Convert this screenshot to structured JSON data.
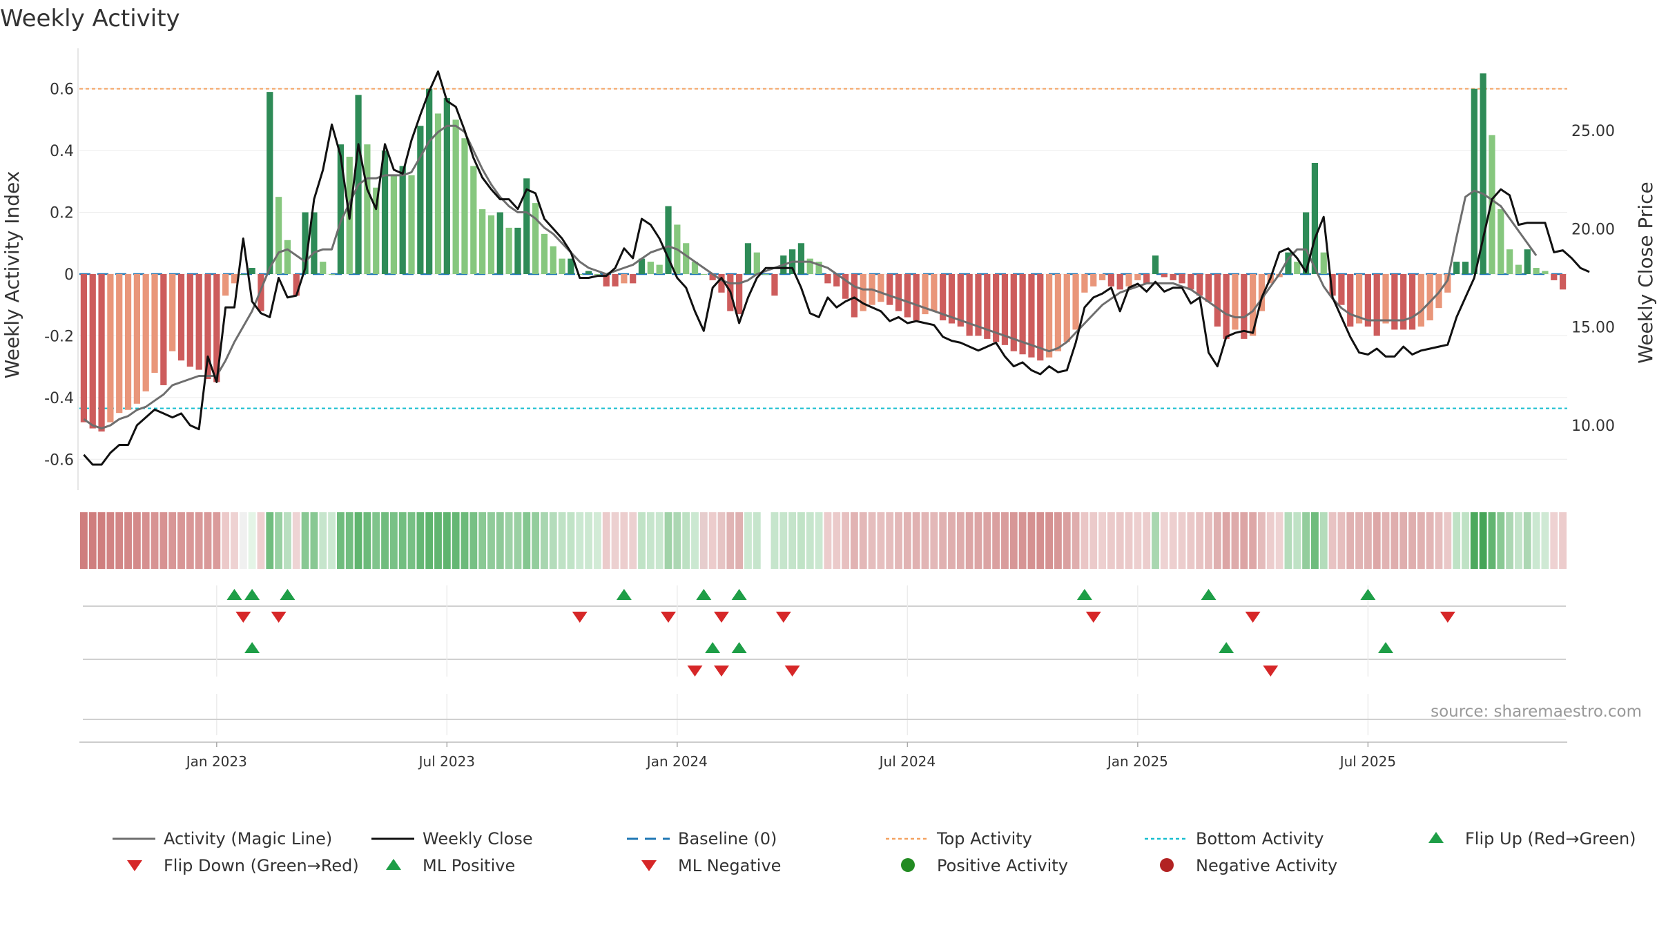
{
  "chart_data": {
    "type": "bar",
    "title": "Weekly Activity",
    "ylabel": "Weekly Activity Index",
    "y2label": "Weekly Close Price",
    "ylim": [
      -0.7,
      0.72
    ],
    "y2lim": [
      6.7,
      29.0
    ],
    "yticks": [
      -0.6,
      -0.4,
      -0.2,
      0,
      0.2,
      0.4,
      0.6
    ],
    "ytick_labels": [
      "-0.6",
      "-0.4",
      "-0.2",
      "0",
      "0.2",
      "0.4",
      "0.6"
    ],
    "y2ticks": [
      10,
      15,
      20,
      25
    ],
    "y2tick_labels": [
      "10.00",
      "15.00",
      "20.00",
      "25.00"
    ],
    "xticks": [
      15,
      41,
      67,
      93,
      119,
      145
    ],
    "xtick_labels": [
      "Jan 2023",
      "Jul 2023",
      "Jan 2024",
      "Jul 2024",
      "Jan 2025",
      "Jul 2025"
    ],
    "top_activity": 0.6,
    "bottom_activity": -0.435,
    "baseline": 0,
    "activity": [
      -0.48,
      -0.5,
      -0.51,
      -0.48,
      -0.45,
      -0.44,
      -0.42,
      -0.38,
      -0.32,
      -0.36,
      -0.25,
      -0.28,
      -0.3,
      -0.31,
      -0.34,
      -0.35,
      -0.07,
      -0.03,
      0.0,
      0.02,
      -0.12,
      0.59,
      0.25,
      0.11,
      -0.07,
      0.2,
      0.2,
      0.04,
      0.0,
      0.42,
      0.38,
      0.58,
      0.42,
      0.28,
      0.4,
      0.32,
      0.35,
      0.32,
      0.48,
      0.6,
      0.52,
      0.57,
      0.5,
      0.44,
      0.35,
      0.21,
      0.19,
      0.2,
      0.15,
      0.15,
      0.31,
      0.23,
      0.13,
      0.09,
      0.05,
      0.05,
      0.0,
      0.01,
      0.0,
      -0.04,
      -0.04,
      -0.03,
      -0.03,
      0.05,
      0.04,
      0.03,
      0.22,
      0.16,
      0.1,
      0.04,
      0.0,
      -0.02,
      -0.06,
      -0.12,
      -0.13,
      0.1,
      0.07,
      0.0,
      -0.07,
      0.06,
      0.08,
      0.1,
      0.05,
      0.04,
      -0.03,
      -0.04,
      -0.08,
      -0.14,
      -0.12,
      -0.1,
      -0.09,
      -0.1,
      -0.12,
      -0.14,
      -0.15,
      -0.13,
      -0.12,
      -0.15,
      -0.16,
      -0.17,
      -0.2,
      -0.2,
      -0.21,
      -0.22,
      -0.23,
      -0.25,
      -0.26,
      -0.27,
      -0.28,
      -0.27,
      -0.25,
      -0.22,
      -0.18,
      -0.06,
      -0.04,
      -0.02,
      -0.04,
      -0.05,
      -0.04,
      -0.02,
      -0.03,
      0.06,
      -0.01,
      -0.02,
      -0.03,
      -0.05,
      -0.07,
      -0.09,
      -0.17,
      -0.21,
      -0.18,
      -0.21,
      -0.2,
      -0.12,
      -0.03,
      -0.01,
      0.07,
      0.04,
      0.2,
      0.36,
      0.07,
      -0.07,
      -0.1,
      -0.17,
      -0.16,
      -0.17,
      -0.2,
      -0.16,
      -0.18,
      -0.18,
      -0.18,
      -0.17,
      -0.15,
      -0.11,
      -0.06,
      0.04,
      0.04,
      0.6,
      0.65,
      0.45,
      0.21,
      0.08,
      0.03,
      0.08,
      0.02,
      0.01,
      -0.02,
      -0.05
    ],
    "magic_line": [
      -0.47,
      -0.49,
      -0.5,
      -0.49,
      -0.47,
      -0.46,
      -0.44,
      -0.43,
      -0.41,
      -0.39,
      -0.36,
      -0.35,
      -0.34,
      -0.33,
      -0.33,
      -0.33,
      -0.28,
      -0.22,
      -0.17,
      -0.12,
      -0.05,
      0.02,
      0.07,
      0.08,
      0.06,
      0.04,
      0.07,
      0.08,
      0.08,
      0.17,
      0.23,
      0.29,
      0.31,
      0.31,
      0.32,
      0.32,
      0.32,
      0.33,
      0.38,
      0.43,
      0.46,
      0.48,
      0.48,
      0.46,
      0.4,
      0.34,
      0.29,
      0.25,
      0.22,
      0.2,
      0.2,
      0.18,
      0.15,
      0.13,
      0.1,
      0.07,
      0.04,
      0.02,
      0.01,
      0.0,
      0.01,
      0.02,
      0.03,
      0.05,
      0.07,
      0.08,
      0.09,
      0.08,
      0.06,
      0.04,
      0.02,
      0.0,
      -0.02,
      -0.03,
      -0.03,
      -0.02,
      0.0,
      0.01,
      0.02,
      0.03,
      0.04,
      0.04,
      0.04,
      0.03,
      0.02,
      0.0,
      -0.02,
      -0.04,
      -0.05,
      -0.05,
      -0.06,
      -0.07,
      -0.08,
      -0.09,
      -0.1,
      -0.11,
      -0.12,
      -0.13,
      -0.14,
      -0.15,
      -0.16,
      -0.17,
      -0.18,
      -0.19,
      -0.2,
      -0.21,
      -0.22,
      -0.23,
      -0.24,
      -0.25,
      -0.24,
      -0.22,
      -0.19,
      -0.16,
      -0.13,
      -0.1,
      -0.08,
      -0.06,
      -0.05,
      -0.04,
      -0.03,
      -0.03,
      -0.03,
      -0.03,
      -0.04,
      -0.05,
      -0.07,
      -0.09,
      -0.11,
      -0.13,
      -0.14,
      -0.14,
      -0.12,
      -0.08,
      -0.04,
      0.0,
      0.05,
      0.08,
      0.08,
      0.02,
      -0.04,
      -0.08,
      -0.11,
      -0.13,
      -0.14,
      -0.15,
      -0.15,
      -0.15,
      -0.15,
      -0.15,
      -0.14,
      -0.12,
      -0.09,
      -0.06,
      -0.02,
      0.12,
      0.25,
      0.27,
      0.26,
      0.24,
      0.22,
      0.18,
      0.14,
      0.1,
      0.06
    ],
    "weekly_close": [
      8.5,
      8.0,
      8.0,
      8.6,
      9.0,
      9.0,
      10.0,
      10.4,
      10.8,
      10.6,
      10.4,
      10.6,
      10.0,
      9.8,
      13.5,
      12.2,
      16.0,
      16.0,
      19.5,
      16.3,
      15.7,
      15.5,
      17.5,
      16.5,
      16.6,
      18.0,
      21.5,
      23.0,
      25.3,
      23.7,
      20.5,
      24.3,
      22.0,
      21.0,
      24.3,
      23.0,
      22.8,
      24.5,
      25.8,
      27.0,
      28.0,
      26.5,
      26.2,
      25.0,
      23.6,
      22.6,
      22.0,
      21.5,
      21.5,
      21.0,
      22.0,
      21.8,
      20.5,
      20.0,
      19.5,
      18.8,
      17.5,
      17.5,
      17.6,
      17.6,
      18.0,
      19.0,
      18.5,
      20.5,
      20.2,
      19.5,
      18.5,
      17.5,
      17.0,
      15.8,
      14.8,
      17.0,
      17.5,
      16.8,
      15.2,
      16.5,
      17.5,
      18.0,
      18.0,
      18.0,
      18.0,
      17.0,
      15.7,
      15.5,
      16.5,
      16.0,
      16.3,
      16.5,
      16.2,
      16.0,
      15.8,
      15.3,
      15.5,
      15.2,
      15.3,
      15.2,
      15.1,
      14.5,
      14.3,
      14.2,
      14.0,
      13.8,
      14.0,
      14.2,
      13.5,
      13.0,
      13.2,
      12.8,
      12.6,
      13.0,
      12.7,
      12.8,
      14.2,
      16.0,
      16.5,
      16.7,
      17.0,
      15.8,
      17.0,
      17.2,
      16.8,
      17.3,
      16.8,
      17.0,
      17.0,
      16.2,
      16.5,
      13.7,
      13.0,
      14.5,
      14.7,
      14.8,
      14.7,
      16.5,
      17.5,
      18.8,
      19.0,
      18.5,
      17.8,
      19.5,
      20.6,
      16.5,
      15.5,
      14.5,
      13.7,
      13.6,
      13.9,
      13.5,
      13.5,
      14.0,
      13.6,
      13.8,
      13.9,
      14.0,
      14.1,
      15.5,
      16.5,
      17.5,
      19.5,
      21.5,
      22.0,
      21.7,
      20.2,
      20.3,
      20.3,
      20.3,
      18.8,
      18.9,
      18.5,
      18.0,
      17.8
    ],
    "heat_colors": [
      "#cf7e7e",
      "#cf7e7e",
      "#cf7e7e",
      "#d18383",
      "#d28686",
      "#d38888",
      "#d48a8a",
      "#d69090",
      "#d79393",
      "#d79292",
      "#d89696",
      "#d89696",
      "#d99797",
      "#d99999",
      "#d99999",
      "#da9b9b",
      "#ecc9c9",
      "#eed2d2",
      "#f0f0f0",
      "#e4f4e6",
      "#eed0d0",
      "#70bd7e",
      "#98d0a2",
      "#b9dfc0",
      "#eed4d4",
      "#88c893",
      "#88c893",
      "#c6e5cc",
      "#cbe8d1",
      "#6fbc7d",
      "#72bd80",
      "#5fb46e",
      "#6cba7a",
      "#80c48c",
      "#70bc7e",
      "#79c186",
      "#72be80",
      "#77c084",
      "#65b774",
      "#5eb46d",
      "#62b571",
      "#5fb46e",
      "#65b774",
      "#6cba7a",
      "#77c084",
      "#8ac994",
      "#90cb9a",
      "#8ec998",
      "#9dd1a6",
      "#9ad0a3",
      "#84c690",
      "#93cd9d",
      "#a8d6b0",
      "#b4dcbb",
      "#bfe2c5",
      "#c0e3c6",
      "#cbe8d1",
      "#cce8d1",
      "#d2ebd6",
      "#ebcbcb",
      "#ecd0d0",
      "#eccece",
      "#ecd0d0",
      "#c0e3c6",
      "#c6e5cc",
      "#c9e7cf",
      "#a0d2a8",
      "#acd7b3",
      "#bde1c3",
      "#cbe8d1",
      "#e6cdcd",
      "#eccccc",
      "#e6c4c4",
      "#e0b4b4",
      "#dfb0b0",
      "#cbe8d1",
      "#c6e5cc",
      "#ffffff",
      "#c6e5cc",
      "#c6e5cc",
      "#c4e4ca",
      "#c0e3c6",
      "#c6e5cc",
      "#cbe8d1",
      "#eccccc",
      "#ebcaca",
      "#e7c0c0",
      "#e1b3b3",
      "#e3b8b8",
      "#e5bdbd",
      "#e6bfbf",
      "#e5bdbd",
      "#e3b8b8",
      "#e1b3b3",
      "#e0b1b1",
      "#e2b5b5",
      "#e3b8b8",
      "#e0b1b1",
      "#dfaeae",
      "#deacac",
      "#dca5a5",
      "#dca5a5",
      "#dba3a3",
      "#daa0a0",
      "#d99d9d",
      "#d79797",
      "#d69494",
      "#d59191",
      "#d48f8f",
      "#d59191",
      "#d79797",
      "#daa0a0",
      "#dfadad",
      "#eac6c6",
      "#ebcaca",
      "#edcfcf",
      "#ebcaca",
      "#eac8c8",
      "#ebcaca",
      "#edcfcf",
      "#eccdcd",
      "#a9d7b0",
      "#eed3d3",
      "#edcfcf",
      "#eccdcd",
      "#eac8c8",
      "#e8c3c3",
      "#e6bebe",
      "#dfb0b0",
      "#dca5a5",
      "#deabab",
      "#dca5a5",
      "#dda7a7",
      "#e4bbbb",
      "#eccdcd",
      "#eed2d2",
      "#b4dcbb",
      "#bfe2c5",
      "#93cd9d",
      "#6fbc7d",
      "#b4dcbb",
      "#e8c3c3",
      "#e6bebe",
      "#e0b1b1",
      "#e1b3b3",
      "#e0b1b1",
      "#dda7a7",
      "#e1b3b3",
      "#dfaeae",
      "#dfaeae",
      "#dfaeae",
      "#e0b1b1",
      "#e2b5b5",
      "#e6bebe",
      "#eac8c8",
      "#bfe2c5",
      "#bfe2c5",
      "#4ca95d",
      "#46a558",
      "#62b571",
      "#8ac994",
      "#acd7b3",
      "#c4e4ca",
      "#acd7b3",
      "#cbe8d1",
      "#cfe9d4",
      "#eed2d2",
      "#eccccc"
    ],
    "flip_up": [
      17,
      19,
      23,
      61,
      70,
      74,
      113,
      127,
      145
    ],
    "flip_down": [
      18,
      22,
      56,
      66,
      72,
      79,
      114,
      132,
      154
    ],
    "ml_positive": [
      19,
      71,
      74,
      129,
      147
    ],
    "ml_negative": [
      69,
      72,
      80,
      134
    ],
    "colors": {
      "pos_strong": "#2e8b57",
      "pos_light": "#86c77e",
      "neg_strong": "#cd5c5c",
      "neg_light": "#e9967a",
      "magic_line": "#6e6e6e",
      "weekly_close": "#111111",
      "baseline": "#1f77b4",
      "top": "#f4a261",
      "bottom": "#17becf",
      "marker_up": "#1e9e47",
      "marker_down": "#d62728",
      "dot_positive": "#228b22",
      "dot_negative": "#b22222"
    },
    "legend": [
      {
        "label": "Activity (Magic Line)",
        "symbol": "line-gray"
      },
      {
        "label": "Weekly Close",
        "symbol": "line-black"
      },
      {
        "label": "Baseline (0)",
        "symbol": "line-baseline"
      },
      {
        "label": "Top Activity",
        "symbol": "line-top"
      },
      {
        "label": "Bottom Activity",
        "symbol": "line-bottom"
      },
      {
        "label": "Flip Up (Red→Green)",
        "symbol": "tri-up"
      },
      {
        "label": "Flip Down (Green→Red)",
        "symbol": "tri-down"
      },
      {
        "label": "ML Positive",
        "symbol": "tri-up"
      },
      {
        "label": "ML Negative",
        "symbol": "tri-down"
      },
      {
        "label": "Positive Activity",
        "symbol": "dot-positive"
      },
      {
        "label": "Negative Activity",
        "symbol": "dot-negative"
      }
    ],
    "source": "source: sharemaestro.com"
  }
}
